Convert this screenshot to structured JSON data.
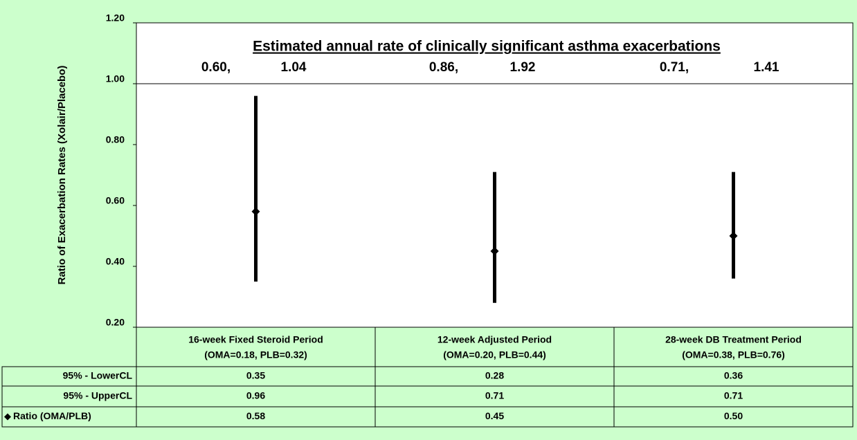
{
  "chart_data": {
    "type": "errorbar",
    "ylabel": "Ratio of Exacerbation Rates (Xolair/Placebo)",
    "categories": [
      "16-week Fixed Steroid Period",
      "12-week Adjusted Period",
      "28-week DB Treatment Period"
    ],
    "category_notes": [
      "(OMA=0.18, PLB=0.32)",
      "(OMA=0.20, PLB=0.44)",
      "(OMA=0.38, PLB=0.76)"
    ],
    "series": [
      {
        "name": "95% - LowerCL",
        "values": [
          0.35,
          0.28,
          0.36
        ]
      },
      {
        "name": "95% - UpperCL",
        "values": [
          0.96,
          0.71,
          0.71
        ]
      },
      {
        "name": "Ratio (OMA/PLB)",
        "values": [
          0.58,
          0.45,
          0.5
        ],
        "value_labels": [
          "0.58",
          "0.45",
          "0.50"
        ],
        "color": "#000000"
      }
    ],
    "ylim": [
      0.2,
      1.2
    ],
    "yticks": [
      {
        "value": 0.2,
        "label": "0.20"
      },
      {
        "value": 0.4,
        "label": "0.40"
      },
      {
        "value": 0.6,
        "label": "0.60"
      },
      {
        "value": 0.8,
        "label": "0.80"
      },
      {
        "value": 1,
        "label": "1.00"
      },
      {
        "value": 1.2,
        "label": "1.20"
      }
    ],
    "reference_line": 1,
    "annotation": {
      "title": "Estimated annual rate of clinically significant asthma exacerbations",
      "rates": [
        [
          "0.60,",
          "1.04"
        ],
        [
          "0.86,",
          "1.92"
        ],
        [
          "0.71,",
          "1.41"
        ]
      ]
    }
  }
}
